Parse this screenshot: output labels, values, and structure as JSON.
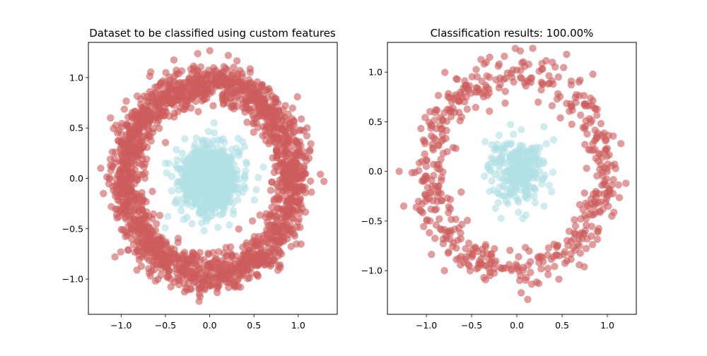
{
  "chart_data": [
    {
      "type": "scatter",
      "title": "Dataset to be classified using custom features",
      "xlabel": "",
      "ylabel": "",
      "xlim": [
        -1.37,
        1.44
      ],
      "ylim": [
        -1.35,
        1.35
      ],
      "xticks": [
        -1.0,
        -0.5,
        0.0,
        0.5,
        1.0
      ],
      "xtick_labels": [
        "−1.0",
        "−0.5",
        "0.0",
        "0.5",
        "1.0"
      ],
      "yticks": [
        -1.0,
        -0.5,
        0.0,
        0.5,
        1.0
      ],
      "ytick_labels": [
        "−1.0",
        "−0.5",
        "0.0",
        "0.5",
        "1.0"
      ],
      "grid": false,
      "legend": "none",
      "series": [
        {
          "color": "#cd5c5c",
          "shape": "ring",
          "center": [
            0.0,
            0.0
          ],
          "radius_mean": 0.95,
          "radius_sd": 0.1,
          "points": [
            [
              1.0,
              0.0
            ],
            [
              0.94,
              0.33
            ],
            [
              0.75,
              0.65
            ],
            [
              0.48,
              0.85
            ],
            [
              0.16,
              0.98
            ],
            [
              -0.17,
              0.95
            ],
            [
              -0.5,
              0.84
            ],
            [
              -0.77,
              0.62
            ],
            [
              -0.93,
              0.33
            ],
            [
              -1.0,
              0.0
            ],
            [
              -0.94,
              -0.33
            ],
            [
              -0.76,
              -0.64
            ],
            [
              -0.49,
              -0.84
            ],
            [
              -0.17,
              -0.97
            ],
            [
              0.16,
              -0.94
            ],
            [
              0.49,
              -0.85
            ],
            [
              0.77,
              -0.63
            ],
            [
              0.94,
              -0.32
            ],
            [
              1.25,
              0.04
            ],
            [
              1.29,
              -0.03
            ],
            [
              -1.23,
              0.1
            ],
            [
              -1.2,
              -0.15
            ],
            [
              0.21,
              1.22
            ],
            [
              -0.12,
              -1.22
            ],
            [
              0.7,
              0.55
            ],
            [
              0.72,
              0.58
            ],
            [
              -0.7,
              -0.56
            ],
            [
              -1.12,
              0.6
            ],
            [
              -1.07,
              -0.78
            ],
            [
              1.1,
              0.5
            ],
            [
              0.5,
              0.9
            ],
            [
              -0.55,
              0.95
            ],
            [
              0.0,
              -1.07
            ],
            [
              -0.4,
              -1.03
            ],
            [
              0.25,
              0.72
            ],
            [
              -0.8,
              0.15
            ]
          ]
        },
        {
          "color": "#b0dfe5",
          "shape": "disk",
          "center": [
            0.0,
            0.0
          ],
          "radius_sd": 0.16,
          "points": [
            [
              0.0,
              0.0
            ],
            [
              0.1,
              0.2
            ],
            [
              -0.2,
              0.1
            ],
            [
              0.05,
              0.55
            ],
            [
              -0.5,
              0.15
            ],
            [
              0.4,
              -0.1
            ],
            [
              -0.2,
              -0.45
            ],
            [
              0.15,
              -0.35
            ],
            [
              -0.15,
              0.4
            ],
            [
              0.3,
              0.3
            ],
            [
              -0.3,
              -0.2
            ],
            [
              -0.1,
              -0.2
            ]
          ]
        }
      ]
    },
    {
      "type": "scatter",
      "title": "Classification results: 100.00%",
      "xlabel": "",
      "ylabel": "",
      "xlim": [
        -1.43,
        1.32
      ],
      "ylim": [
        -1.44,
        1.3
      ],
      "xticks": [
        -1.0,
        -0.5,
        0.0,
        0.5,
        1.0
      ],
      "xtick_labels": [
        "−1.0",
        "−0.5",
        "0.0",
        "0.5",
        "1.0"
      ],
      "yticks": [
        -1.0,
        -0.5,
        0.0,
        0.5,
        1.0
      ],
      "ytick_labels": [
        "−1.0",
        "−0.5",
        "0.0",
        "0.5",
        "1.0"
      ],
      "grid": false,
      "legend": "none",
      "series": [
        {
          "color": "#cd5c5c",
          "shape": "ring",
          "center": [
            0.0,
            0.0
          ],
          "radius_mean": 0.98,
          "radius_sd": 0.11,
          "points": [
            [
              1.0,
              0.0
            ],
            [
              0.75,
              0.68
            ],
            [
              0.0,
              1.02
            ],
            [
              -0.72,
              0.7
            ],
            [
              -1.0,
              0.05
            ],
            [
              -0.7,
              -0.72
            ],
            [
              0.02,
              -1.0
            ],
            [
              0.72,
              -0.68
            ],
            [
              1.15,
              0.28
            ],
            [
              -1.3,
              0.0
            ],
            [
              -0.8,
              -1.0
            ],
            [
              0.12,
              -1.29
            ],
            [
              0.55,
              1.18
            ],
            [
              -0.95,
              0.47
            ],
            [
              1.05,
              -0.45
            ],
            [
              -1.25,
              -0.35
            ],
            [
              0.84,
              0.98
            ],
            [
              -0.3,
              1.15
            ]
          ]
        },
        {
          "color": "#b0dfe5",
          "shape": "disk",
          "center": [
            0.0,
            0.0
          ],
          "radius_sd": 0.15,
          "points": [
            [
              0.0,
              0.0
            ],
            [
              0.05,
              0.42
            ],
            [
              -0.35,
              0.3
            ],
            [
              0.3,
              -0.35
            ],
            [
              0.3,
              0.45
            ],
            [
              -0.3,
              -0.2
            ],
            [
              0.15,
              0.1
            ],
            [
              -0.15,
              -0.15
            ],
            [
              0.25,
              0.0
            ],
            [
              -0.2,
              0.22
            ]
          ]
        }
      ]
    }
  ]
}
